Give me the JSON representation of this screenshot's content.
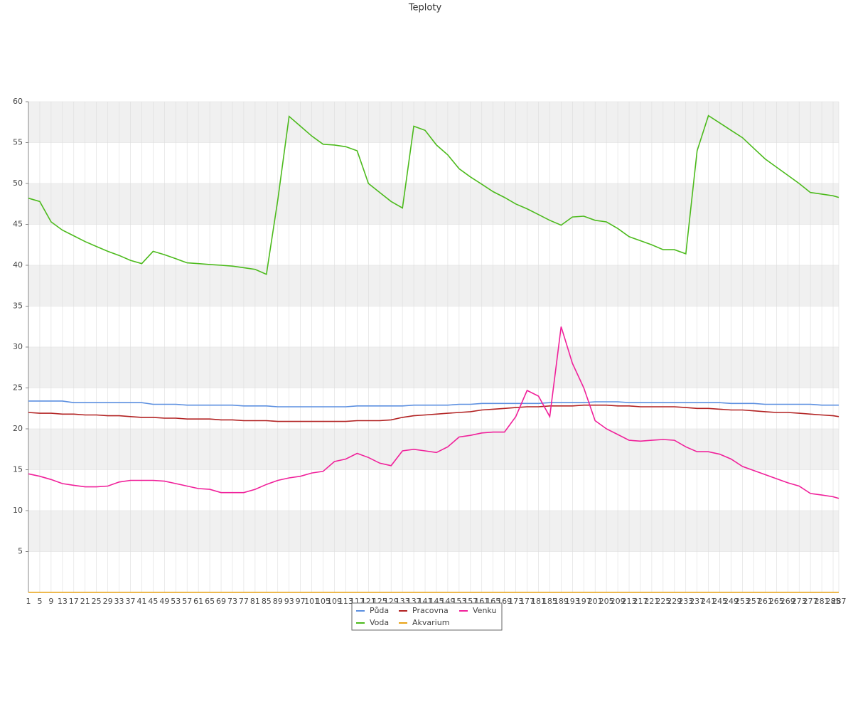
{
  "chart_data": {
    "type": "line",
    "title": "Teploty",
    "x": [
      1,
      5,
      9,
      13,
      17,
      21,
      25,
      29,
      33,
      37,
      41,
      45,
      49,
      53,
      57,
      61,
      65,
      69,
      73,
      77,
      81,
      85,
      89,
      93,
      97,
      101,
      105,
      109,
      113,
      117,
      121,
      125,
      129,
      133,
      137,
      141,
      145,
      149,
      153,
      157,
      161,
      165,
      169,
      173,
      177,
      181,
      185,
      189,
      193,
      197,
      201,
      205,
      209,
      213,
      217,
      221,
      225,
      229,
      233,
      237,
      241,
      245,
      249,
      253,
      257,
      261,
      265,
      269,
      273,
      277,
      281,
      285,
      287
    ],
    "xlim": [
      1,
      287
    ],
    "ylim": [
      0,
      60
    ],
    "yticks": [
      5,
      10,
      15,
      20,
      25,
      30,
      35,
      40,
      45,
      50,
      55,
      60
    ],
    "grid": true,
    "legend": "bottom",
    "series": [
      {
        "name": "Půda",
        "color": "#5b8fe0",
        "values": [
          23.4,
          23.4,
          23.4,
          23.4,
          23.2,
          23.2,
          23.2,
          23.2,
          23.2,
          23.2,
          23.2,
          23.0,
          23.0,
          23.0,
          22.9,
          22.9,
          22.9,
          22.9,
          22.9,
          22.8,
          22.8,
          22.8,
          22.7,
          22.7,
          22.7,
          22.7,
          22.7,
          22.7,
          22.7,
          22.8,
          22.8,
          22.8,
          22.8,
          22.8,
          22.9,
          22.9,
          22.9,
          22.9,
          23.0,
          23.0,
          23.1,
          23.1,
          23.1,
          23.1,
          23.1,
          23.1,
          23.2,
          23.2,
          23.2,
          23.2,
          23.3,
          23.3,
          23.3,
          23.2,
          23.2,
          23.2,
          23.2,
          23.2,
          23.2,
          23.2,
          23.2,
          23.2,
          23.1,
          23.1,
          23.1,
          23.0,
          23.0,
          23.0,
          23.0,
          23.0,
          22.9,
          22.9,
          22.9
        ]
      },
      {
        "name": "Voda",
        "color": "#4cba1c",
        "values": [
          48.2,
          47.8,
          45.3,
          44.3,
          43.6,
          42.9,
          42.3,
          41.7,
          41.2,
          40.6,
          40.2,
          41.7,
          41.3,
          40.8,
          40.3,
          40.2,
          40.1,
          40.0,
          39.9,
          39.7,
          39.5,
          38.9,
          48.0,
          58.2,
          57.0,
          55.8,
          54.8,
          54.7,
          54.5,
          54.0,
          50.0,
          48.9,
          47.8,
          47.0,
          57.0,
          56.5,
          54.7,
          53.5,
          51.8,
          50.8,
          49.9,
          49.0,
          48.3,
          47.5,
          46.9,
          46.2,
          45.5,
          44.9,
          45.9,
          46.0,
          45.5,
          45.3,
          44.5,
          43.5,
          43.0,
          42.5,
          41.9,
          41.9,
          41.4,
          54.0,
          58.3,
          57.4,
          56.5,
          55.6,
          54.3,
          53.0,
          52.0,
          51.0,
          50.0,
          48.9,
          48.7,
          48.5,
          48.3
        ]
      },
      {
        "name": "Pracovna",
        "color": "#b22222",
        "values": [
          22.0,
          21.9,
          21.9,
          21.8,
          21.8,
          21.7,
          21.7,
          21.6,
          21.6,
          21.5,
          21.4,
          21.4,
          21.3,
          21.3,
          21.2,
          21.2,
          21.2,
          21.1,
          21.1,
          21.0,
          21.0,
          21.0,
          20.9,
          20.9,
          20.9,
          20.9,
          20.9,
          20.9,
          20.9,
          21.0,
          21.0,
          21.0,
          21.1,
          21.4,
          21.6,
          21.7,
          21.8,
          21.9,
          22.0,
          22.1,
          22.3,
          22.4,
          22.5,
          22.6,
          22.7,
          22.7,
          22.8,
          22.8,
          22.8,
          22.9,
          22.9,
          22.9,
          22.8,
          22.8,
          22.7,
          22.7,
          22.7,
          22.7,
          22.6,
          22.5,
          22.5,
          22.4,
          22.3,
          22.3,
          22.2,
          22.1,
          22.0,
          22.0,
          21.9,
          21.8,
          21.7,
          21.6,
          21.5
        ]
      },
      {
        "name": "Akvarium",
        "color": "#e8a317",
        "values": [
          0,
          0,
          0,
          0,
          0,
          0,
          0,
          0,
          0,
          0,
          0,
          0,
          0,
          0,
          0,
          0,
          0,
          0,
          0,
          0,
          0,
          0,
          0,
          0,
          0,
          0,
          0,
          0,
          0,
          0,
          0,
          0,
          0,
          0,
          0,
          0,
          0,
          0,
          0,
          0,
          0,
          0,
          0,
          0,
          0,
          0,
          0,
          0,
          0,
          0,
          0,
          0,
          0,
          0,
          0,
          0,
          0,
          0,
          0,
          0,
          0,
          0,
          0,
          0,
          0,
          0,
          0,
          0,
          0,
          0,
          0,
          0,
          0
        ]
      },
      {
        "name": "Venku",
        "color": "#f0209a",
        "values": [
          14.5,
          14.2,
          13.8,
          13.3,
          13.1,
          12.9,
          12.9,
          13.0,
          13.5,
          13.7,
          13.7,
          13.7,
          13.6,
          13.3,
          13.0,
          12.7,
          12.6,
          12.2,
          12.2,
          12.2,
          12.6,
          13.2,
          13.7,
          14.0,
          14.2,
          14.6,
          14.8,
          16.0,
          16.3,
          17.0,
          16.5,
          15.8,
          15.5,
          17.3,
          17.5,
          17.3,
          17.1,
          17.8,
          19.0,
          19.2,
          19.5,
          19.6,
          19.6,
          21.5,
          24.7,
          24.0,
          21.5,
          32.5,
          28.0,
          25.0,
          21.0,
          20.0,
          19.3,
          18.6,
          18.5,
          18.6,
          18.7,
          18.6,
          17.8,
          17.2,
          17.2,
          16.9,
          16.3,
          15.4,
          14.9,
          14.4,
          13.9,
          13.4,
          13.0,
          12.1,
          11.9,
          11.7,
          11.5
        ]
      }
    ]
  }
}
